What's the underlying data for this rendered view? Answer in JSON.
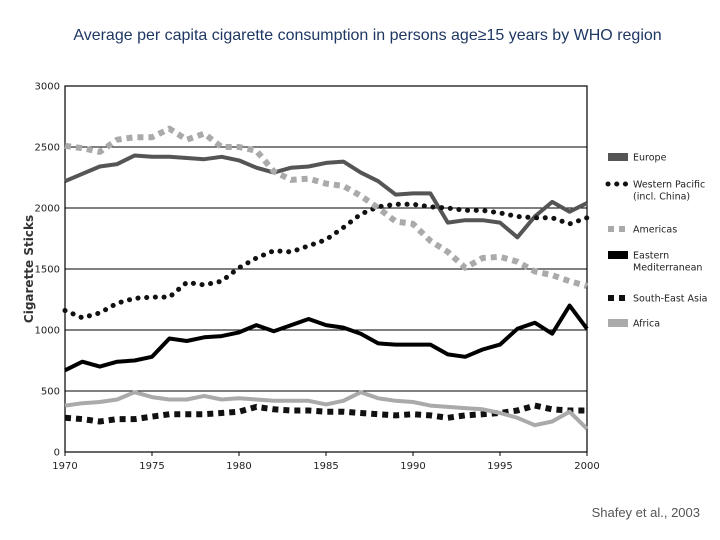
{
  "title": "Average per capita cigarette consumption in persons age≥15 years by WHO region",
  "source": "Shafey et al., 2003",
  "chart_data": {
    "type": "line",
    "title": "Average per capita cigarette consumption in persons age≥15 years by WHO region",
    "xlabel": "",
    "ylabel": "Cigarette Sticks",
    "xlim": [
      1970,
      2000
    ],
    "ylim": [
      0,
      3000
    ],
    "x_ticks": [
      1970,
      1975,
      1980,
      1985,
      1990,
      1995,
      2000
    ],
    "y_ticks": [
      0,
      500,
      1000,
      1500,
      2000,
      2500,
      3000
    ],
    "grid": "horizontal",
    "legend_position": "right",
    "x": [
      1970,
      1971,
      1972,
      1973,
      1974,
      1975,
      1976,
      1977,
      1978,
      1979,
      1980,
      1981,
      1982,
      1983,
      1984,
      1985,
      1986,
      1987,
      1988,
      1989,
      1990,
      1991,
      1992,
      1993,
      1994,
      1995,
      1996,
      1997,
      1998,
      1999,
      2000
    ],
    "series": [
      {
        "name": "Europe",
        "style": "solid",
        "color": "#555555",
        "values": [
          2220,
          2280,
          2340,
          2360,
          2430,
          2420,
          2420,
          2410,
          2400,
          2420,
          2390,
          2330,
          2290,
          2330,
          2340,
          2370,
          2380,
          2290,
          2220,
          2110,
          2120,
          2120,
          1880,
          1900,
          1900,
          1880,
          1760,
          1930,
          2050,
          1970,
          2040
        ]
      },
      {
        "name": "Western Pacific (incl. China)",
        "style": "dotted",
        "color": "#111111",
        "values": [
          1160,
          1100,
          1140,
          1220,
          1260,
          1270,
          1270,
          1390,
          1370,
          1400,
          1510,
          1590,
          1650,
          1640,
          1690,
          1740,
          1840,
          1950,
          2010,
          2030,
          2030,
          2010,
          2000,
          1980,
          1980,
          1960,
          1930,
          1920,
          1920,
          1870,
          1920
        ]
      },
      {
        "name": "Americas",
        "style": "dashed",
        "color": "#aaaaaa",
        "values": [
          2510,
          2490,
          2460,
          2560,
          2580,
          2580,
          2650,
          2560,
          2610,
          2500,
          2500,
          2470,
          2300,
          2230,
          2240,
          2200,
          2180,
          2100,
          2000,
          1890,
          1870,
          1730,
          1640,
          1510,
          1590,
          1600,
          1560,
          1480,
          1450,
          1400,
          1360
        ]
      },
      {
        "name": "Eastern Mediterranean",
        "style": "solid",
        "color": "#000000",
        "values": [
          670,
          740,
          700,
          740,
          750,
          780,
          930,
          910,
          940,
          950,
          980,
          1040,
          990,
          1040,
          1090,
          1040,
          1020,
          970,
          890,
          880,
          880,
          880,
          800,
          780,
          840,
          880,
          1010,
          1060,
          970,
          1200,
          1010
        ]
      },
      {
        "name": "South-East Asia",
        "style": "dashed",
        "color": "#111111",
        "values": [
          280,
          270,
          250,
          270,
          270,
          290,
          310,
          310,
          310,
          320,
          330,
          370,
          350,
          340,
          340,
          330,
          330,
          320,
          310,
          300,
          310,
          300,
          280,
          300,
          310,
          320,
          340,
          380,
          350,
          340,
          340
        ]
      },
      {
        "name": "Africa",
        "style": "solid",
        "color": "#aaaaaa",
        "values": [
          380,
          400,
          410,
          430,
          490,
          450,
          430,
          430,
          460,
          430,
          440,
          430,
          420,
          420,
          420,
          390,
          420,
          490,
          440,
          420,
          410,
          380,
          370,
          360,
          350,
          320,
          280,
          220,
          250,
          330,
          190
        ]
      }
    ]
  }
}
